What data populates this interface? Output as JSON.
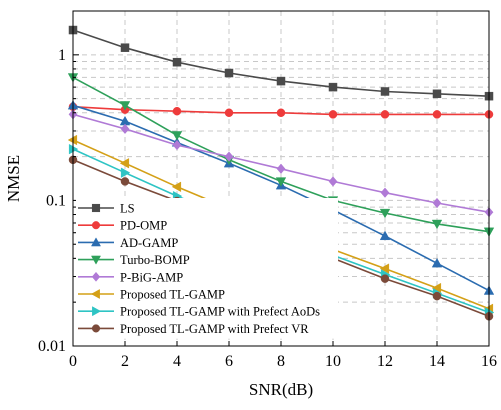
{
  "chart_data": {
    "type": "line",
    "title": "",
    "xlabel": "SNR(dB)",
    "ylabel": "NMSE",
    "xlim": [
      0,
      16
    ],
    "ylim": [
      0.01,
      2
    ],
    "yscale": "log",
    "grid": true,
    "legend_position": "bottom-left",
    "x_ticks": [
      0,
      2,
      4,
      6,
      8,
      10,
      12,
      14,
      16
    ],
    "x_tick_labels": [
      "0",
      "2",
      "4",
      "6",
      "8",
      "10",
      "12",
      "14",
      "16"
    ],
    "y_ticks": [
      0.01,
      0.1,
      1
    ],
    "y_tick_labels": [
      "0.01",
      "0.1",
      "1"
    ],
    "x": [
      0,
      2,
      4,
      6,
      8,
      10,
      12,
      14,
      16
    ],
    "series": [
      {
        "name": "LS",
        "color": "#4a4a4a",
        "marker": "square",
        "values": [
          1.48,
          1.12,
          0.89,
          0.75,
          0.66,
          0.6,
          0.56,
          0.54,
          0.52
        ]
      },
      {
        "name": "PD-OMP",
        "color": "#ee3b3b",
        "marker": "circle",
        "values": [
          0.44,
          0.42,
          0.41,
          0.4,
          0.4,
          0.39,
          0.39,
          0.39,
          0.39
        ]
      },
      {
        "name": "AD-GAMP",
        "color": "#2b6cb0",
        "marker": "triangle-up",
        "values": [
          0.45,
          0.35,
          0.25,
          0.18,
          0.127,
          0.086,
          0.057,
          0.037,
          0.024
        ]
      },
      {
        "name": "Turbo-BOMP",
        "color": "#2ea05a",
        "marker": "triangle-down",
        "values": [
          0.7,
          0.45,
          0.28,
          0.19,
          0.135,
          0.1,
          0.082,
          0.069,
          0.061
        ]
      },
      {
        "name": "P-BiG-AMP",
        "color": "#b07ad6",
        "marker": "diamond",
        "values": [
          0.39,
          0.31,
          0.24,
          0.2,
          0.165,
          0.135,
          0.113,
          0.096,
          0.083
        ]
      },
      {
        "name": "Proposed TL-GAMP",
        "color": "#d4a017",
        "marker": "triangle-left",
        "values": [
          0.26,
          0.18,
          0.124,
          0.088,
          0.063,
          0.046,
          0.034,
          0.025,
          0.018
        ]
      },
      {
        "name": "Proposed TL-GAMP with Prefect AoDs",
        "color": "#2ec4c4",
        "marker": "triangle-right",
        "values": [
          0.225,
          0.155,
          0.107,
          0.077,
          0.057,
          0.042,
          0.031,
          0.023,
          0.017
        ]
      },
      {
        "name": "Proposed TL-GAMP with Prefect VR",
        "color": "#7b4a3a",
        "marker": "circle",
        "values": [
          0.19,
          0.135,
          0.099,
          0.073,
          0.054,
          0.04,
          0.029,
          0.022,
          0.016
        ]
      }
    ]
  }
}
